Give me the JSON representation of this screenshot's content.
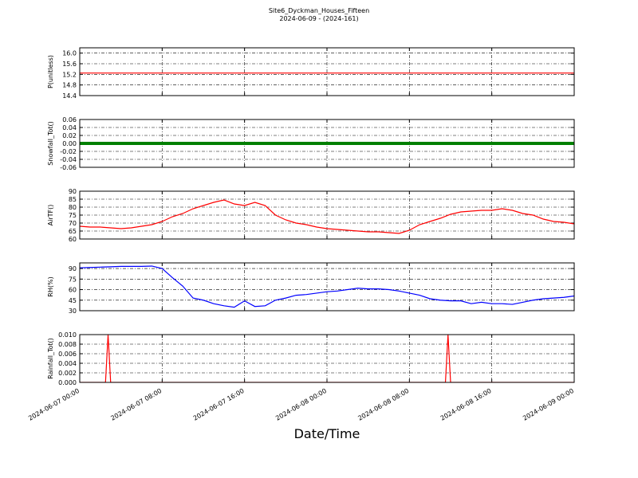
{
  "chart_data": [
    {
      "type": "line",
      "title": "Site6_Dyckman_Houses_Fifteen",
      "subtitle": "2024-06-09 - (2024-161)",
      "ylabel": "P(unitless)",
      "color": "#ff0000",
      "x": [
        "2024-06-07 00:00",
        "2024-06-09 00:00"
      ],
      "values": [
        15.25,
        15.25
      ],
      "ylim": [
        14.4,
        16.2
      ],
      "yticks": [
        14.4,
        14.8,
        15.2,
        15.6,
        {
          "value": 16.0,
          "label": "16.0"
        }
      ],
      "grid": true
    },
    {
      "type": "line",
      "ylabel": "Snowfall_Tot()",
      "color": "#008000",
      "x": [
        "2024-06-07 00:00",
        "2024-06-09 00:00"
      ],
      "values": [
        0,
        0
      ],
      "ylim": [
        -0.06,
        0.06
      ],
      "yticks": [
        -0.06,
        -0.04,
        -0.02,
        {
          "value": 0,
          "label": "0.00"
        },
        0.02,
        0.04,
        0.06
      ],
      "grid": true
    },
    {
      "type": "line",
      "ylabel": "AirTF()",
      "color": "#ff0000",
      "x": [
        "2024-06-07 00:00",
        "2024-06-07 01:00",
        "2024-06-07 02:00",
        "2024-06-07 03:00",
        "2024-06-07 04:00",
        "2024-06-07 05:00",
        "2024-06-07 06:00",
        "2024-06-07 07:00",
        "2024-06-07 08:00",
        "2024-06-07 09:00",
        "2024-06-07 10:00",
        "2024-06-07 11:00",
        "2024-06-07 12:00",
        "2024-06-07 13:00",
        "2024-06-07 14:00",
        "2024-06-07 15:00",
        "2024-06-07 16:00",
        "2024-06-07 17:00",
        "2024-06-07 18:00",
        "2024-06-07 19:00",
        "2024-06-07 20:00",
        "2024-06-07 21:00",
        "2024-06-07 22:00",
        "2024-06-07 23:00",
        "2024-06-08 00:00",
        "2024-06-08 01:00",
        "2024-06-08 02:00",
        "2024-06-08 03:00",
        "2024-06-08 04:00",
        "2024-06-08 05:00",
        "2024-06-08 06:00",
        "2024-06-08 07:00",
        "2024-06-08 08:00",
        "2024-06-08 09:00",
        "2024-06-08 10:00",
        "2024-06-08 11:00",
        "2024-06-08 12:00",
        "2024-06-08 13:00",
        "2024-06-08 14:00",
        "2024-06-08 15:00",
        "2024-06-08 16:00",
        "2024-06-08 17:00",
        "2024-06-08 18:00",
        "2024-06-08 19:00",
        "2024-06-08 20:00",
        "2024-06-08 21:00",
        "2024-06-08 22:00",
        "2024-06-08 23:00",
        "2024-06-09 00:00"
      ],
      "values": [
        68,
        67.5,
        67.5,
        67,
        66.5,
        67,
        68,
        69,
        71,
        74,
        76,
        79,
        81,
        83,
        84.5,
        82,
        81,
        83,
        81,
        75,
        72,
        70,
        69,
        67.5,
        66.5,
        66,
        65.5,
        65,
        64.5,
        64.5,
        64,
        63.5,
        65.5,
        69,
        71,
        73,
        75.5,
        77,
        77.5,
        78,
        78,
        79,
        78,
        76,
        75,
        72.5,
        71,
        70.5,
        69.5
      ],
      "ylim": [
        60,
        90
      ],
      "yticks": [
        60,
        65,
        70,
        75,
        80,
        85,
        90
      ],
      "grid": true
    },
    {
      "type": "line",
      "ylabel": "RH(%)",
      "color": "#0000ff",
      "x": [
        "2024-06-07 00:00",
        "2024-06-07 01:00",
        "2024-06-07 02:00",
        "2024-06-07 03:00",
        "2024-06-07 04:00",
        "2024-06-07 05:00",
        "2024-06-07 06:00",
        "2024-06-07 07:00",
        "2024-06-07 08:00",
        "2024-06-07 09:00",
        "2024-06-07 10:00",
        "2024-06-07 11:00",
        "2024-06-07 12:00",
        "2024-06-07 13:00",
        "2024-06-07 14:00",
        "2024-06-07 15:00",
        "2024-06-07 16:00",
        "2024-06-07 17:00",
        "2024-06-07 18:00",
        "2024-06-07 19:00",
        "2024-06-07 20:00",
        "2024-06-07 21:00",
        "2024-06-07 22:00",
        "2024-06-07 23:00",
        "2024-06-08 00:00",
        "2024-06-08 01:00",
        "2024-06-08 02:00",
        "2024-06-08 03:00",
        "2024-06-08 04:00",
        "2024-06-08 05:00",
        "2024-06-08 06:00",
        "2024-06-08 07:00",
        "2024-06-08 08:00",
        "2024-06-08 09:00",
        "2024-06-08 10:00",
        "2024-06-08 11:00",
        "2024-06-08 12:00",
        "2024-06-08 13:00",
        "2024-06-08 14:00",
        "2024-06-08 15:00",
        "2024-06-08 16:00",
        "2024-06-08 17:00",
        "2024-06-08 18:00",
        "2024-06-08 19:00",
        "2024-06-08 20:00",
        "2024-06-08 21:00",
        "2024-06-08 22:00",
        "2024-06-08 23:00",
        "2024-06-09 00:00"
      ],
      "values": [
        91,
        91.5,
        92,
        92.5,
        93,
        93,
        93,
        93.5,
        90,
        77,
        65,
        48,
        45,
        40,
        37,
        35,
        44,
        36,
        37,
        45,
        48,
        52,
        53,
        55,
        57,
        58,
        60,
        62,
        61,
        61,
        60,
        58,
        55,
        52,
        47,
        45,
        44,
        44,
        40,
        42,
        40,
        40,
        39,
        42,
        45,
        47,
        48,
        49,
        51
      ],
      "ylim": [
        30,
        98
      ],
      "yticks": [
        30,
        45,
        60,
        75,
        90
      ],
      "grid": true
    },
    {
      "type": "line",
      "ylabel": "Rainfall_Tot()",
      "xlabel": "Date/Time",
      "color": "#ff0000",
      "x": [
        "2024-06-07 00:00",
        "2024-06-07 02:30",
        "2024-06-07 02:45",
        "2024-06-07 03:00",
        "2024-06-08 11:30",
        "2024-06-08 11:45",
        "2024-06-08 12:00",
        "2024-06-09 00:00"
      ],
      "values": [
        0,
        0,
        0.01,
        0,
        0,
        0.01,
        0,
        0
      ],
      "ylim": [
        0,
        0.01
      ],
      "yticks": [
        {
          "value": 0,
          "label": "0.000"
        },
        0.002,
        0.004,
        0.006,
        0.008,
        {
          "value": 0.01,
          "label": "0.010"
        }
      ],
      "xlim": [
        "2024-06-07 00:00",
        "2024-06-09 00:00"
      ],
      "xticks": [
        "2024-06-07 00:00",
        "2024-06-07 08:00",
        "2024-06-07 16:00",
        "2024-06-08 00:00",
        "2024-06-08 08:00",
        "2024-06-08 16:00",
        "2024-06-09 00:00"
      ],
      "grid": true
    }
  ]
}
